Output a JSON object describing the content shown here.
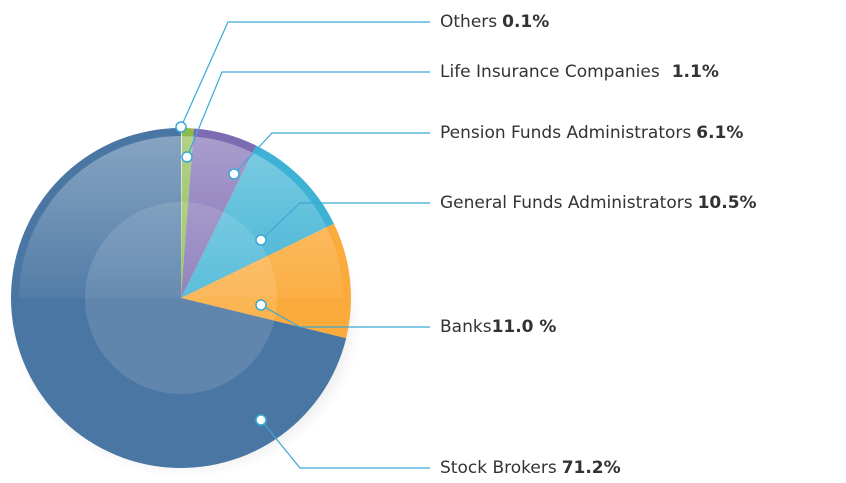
{
  "chart_data": {
    "type": "pie",
    "categories": [
      "Others",
      "Life Insurance Companies",
      "Pension Funds Administrators",
      "General Funds Administrators",
      "Banks",
      "Stock Brokers"
    ],
    "values": [
      0.1,
      1.1,
      6.1,
      10.5,
      11.0,
      71.2
    ],
    "value_labels": [
      "0.1%",
      "1.1%",
      "6.1%",
      "10.5%",
      "11.0 %",
      "71.2%"
    ],
    "colors": [
      "#dfeccb",
      "#8cbb4c",
      "#7e6cb3",
      "#3db2d4",
      "#fbab3c",
      "#4a76a3"
    ]
  }
}
